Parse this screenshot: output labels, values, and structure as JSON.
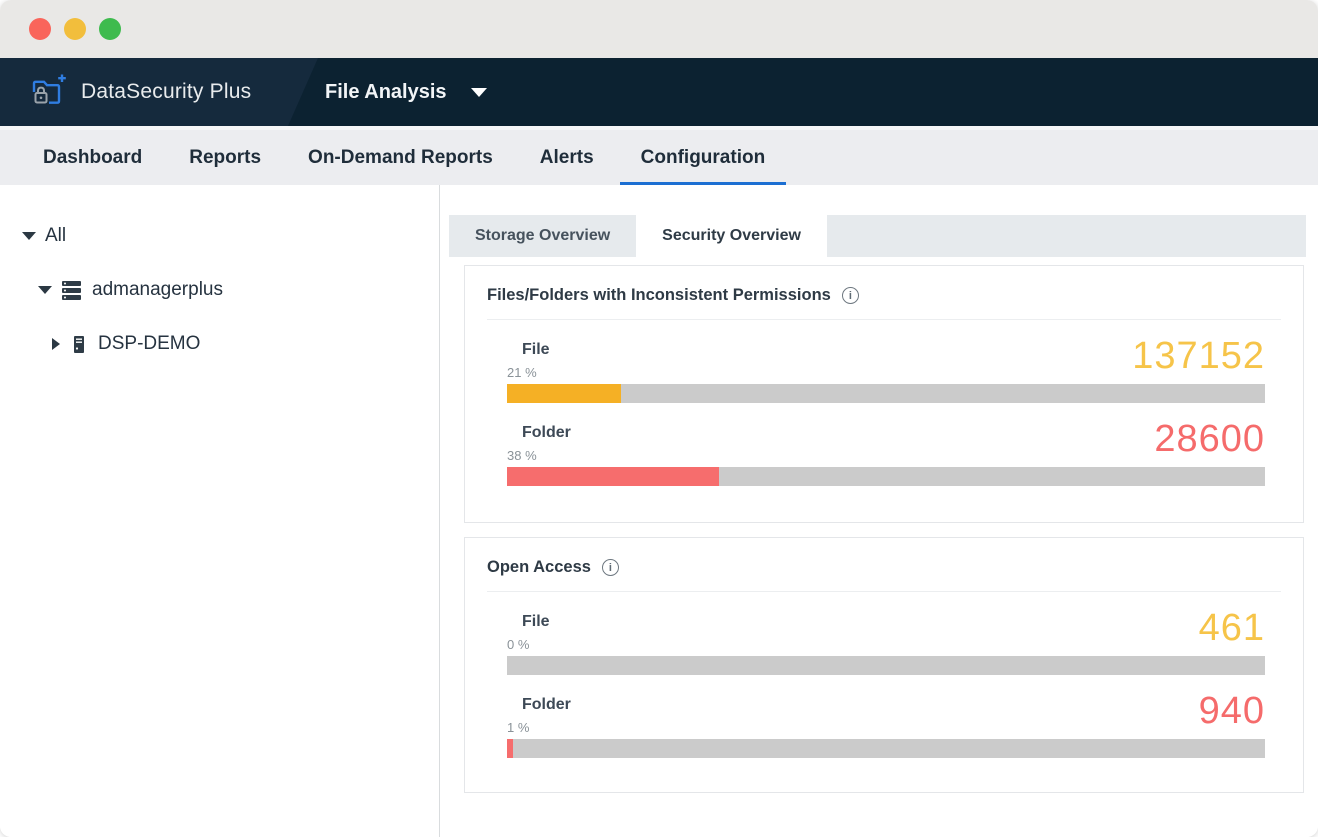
{
  "window": {
    "traffic_lights": [
      {
        "name": "close",
        "color": "#F9655B"
      },
      {
        "name": "minimize",
        "color": "#F2BE3C"
      },
      {
        "name": "zoom",
        "color": "#3EBB4E"
      }
    ]
  },
  "header": {
    "app_name": "DataSecurity Plus",
    "module_selector": {
      "label": "File Analysis"
    }
  },
  "nav": {
    "active_underline_color": "#1C6FD2",
    "tabs": [
      {
        "label": "Dashboard",
        "active": false
      },
      {
        "label": "Reports",
        "active": false
      },
      {
        "label": "On-Demand Reports",
        "active": false
      },
      {
        "label": "Alerts",
        "active": false
      },
      {
        "label": "Configuration",
        "active": true
      }
    ]
  },
  "sidebar": {
    "tree": [
      {
        "label": "All",
        "expanded": true,
        "icon": null
      },
      {
        "label": "admanagerplus",
        "expanded": true,
        "icon": "server-stack-icon"
      },
      {
        "label": "DSP-DEMO",
        "expanded": false,
        "icon": "server-icon"
      }
    ]
  },
  "main": {
    "subtabs": [
      {
        "label": "Storage Overview",
        "active": false
      },
      {
        "label": "Security Overview",
        "active": true
      }
    ],
    "bar_track_color": "#CBCBCB",
    "cards": [
      {
        "title": "Files/Folders with Inconsistent Permissions",
        "rows": [
          {
            "label": "File",
            "percent_label": "21 %",
            "value": "137152",
            "fill_pct": 15,
            "bar_color": "#F5B025",
            "value_color": "#F6C449"
          },
          {
            "label": "Folder",
            "percent_label": "38 %",
            "value": "28600",
            "fill_pct": 28,
            "bar_color": "#F66D6D",
            "value_color": "#F56B6B"
          }
        ]
      },
      {
        "title": "Open Access",
        "rows": [
          {
            "label": "File",
            "percent_label": "0 %",
            "value": "461",
            "fill_pct": 0,
            "bar_color": "#F5B025",
            "value_color": "#F6C449"
          },
          {
            "label": "Folder",
            "percent_label": "1 %",
            "value": "940",
            "fill_pct": 0.8,
            "bar_color": "#F66D6D",
            "value_color": "#F56B6B"
          }
        ]
      }
    ]
  }
}
